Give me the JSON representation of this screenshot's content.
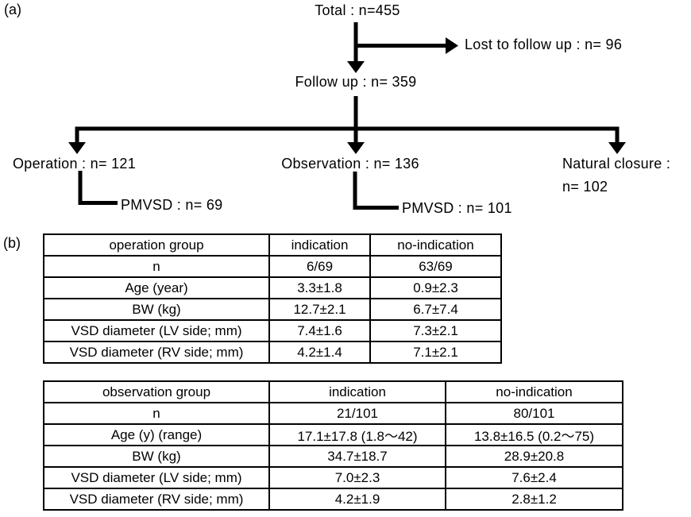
{
  "panel_a": {
    "label": "(a)",
    "nodes": {
      "total": "Total : n=455",
      "lost_to_follow_up": "Lost to follow up : n= 96",
      "follow_up": "Follow up : n= 359",
      "operation": "Operation : n= 121",
      "observation": "Observation : n= 136",
      "natural_closure_line1": "Natural closure :",
      "natural_closure_line2": "n= 102",
      "operation_pmvsd": "PMVSD : n= 69",
      "observation_pmvsd": "PMVSD : n= 101"
    }
  },
  "panel_b": {
    "label": "(b)",
    "tables": [
      {
        "name": "operation-group-table",
        "headers": [
          "operation group",
          "indication",
          "no-indication"
        ],
        "rows": [
          [
            "n",
            "6/69",
            "63/69"
          ],
          [
            "Age (year)",
            "3.3±1.8",
            "0.9±2.3"
          ],
          [
            "BW (kg)",
            "12.7±2.1",
            "6.7±7.4"
          ],
          [
            "VSD diameter (LV side; mm)",
            "7.4±1.6",
            "7.3±2.1"
          ],
          [
            "VSD diameter (RV side; mm)",
            "4.2±1.4",
            "7.1±2.1"
          ]
        ]
      },
      {
        "name": "observation-group-table",
        "headers": [
          "observation group",
          "indication",
          "no-indication"
        ],
        "rows": [
          [
            "n",
            "21/101",
            "80/101"
          ],
          [
            "Age (y) (range)",
            "17.1±17.8 (1.8～42)",
            "13.8±16.5 (0.2～75)"
          ],
          [
            "BW (kg)",
            "34.7±18.7",
            "28.9±20.8"
          ],
          [
            "VSD diameter (LV side; mm)",
            "7.0±2.3",
            "7.6±2.4"
          ],
          [
            "VSD diameter (RV side; mm)",
            "4.2±1.9",
            "2.8±1.2"
          ]
        ]
      }
    ]
  },
  "colors": {
    "ink": "#000000",
    "background": "#ffffff"
  }
}
